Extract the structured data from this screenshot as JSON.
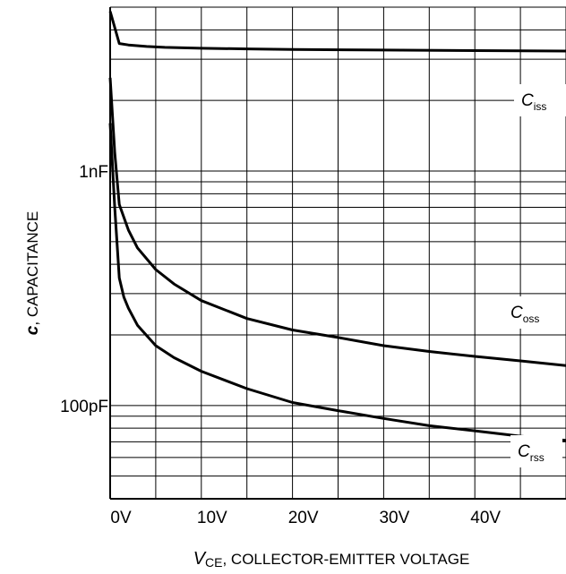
{
  "chart_data": {
    "type": "line",
    "title": "",
    "xlabel": {
      "main": "V",
      "sub": "CE",
      "rest": ", COLLECTOR-EMITTER VOLTAGE"
    },
    "ylabel": {
      "main": "c",
      "rest": ", CAPACITANCE"
    },
    "x_ticks": [
      {
        "value": 0,
        "label": "0V"
      },
      {
        "value": 10,
        "label": "10V"
      },
      {
        "value": 20,
        "label": "20V"
      },
      {
        "value": 30,
        "label": "30V"
      },
      {
        "value": 40,
        "label": "40V"
      }
    ],
    "y_ticks": [
      {
        "value": 1000,
        "label": "1nF"
      },
      {
        "value": 100,
        "label": "100pF"
      }
    ],
    "xlim": [
      0,
      50
    ],
    "ylim_pF": [
      40,
      5000
    ],
    "y_scale": "log",
    "grid": true,
    "series": [
      {
        "name": "C",
        "sub": "iss",
        "x": [
          0,
          1,
          2,
          4,
          6,
          10,
          15,
          20,
          30,
          40,
          50
        ],
        "y": [
          4800,
          3500,
          3450,
          3400,
          3370,
          3340,
          3320,
          3300,
          3280,
          3265,
          3250
        ]
      },
      {
        "name": "C",
        "sub": "oss",
        "x": [
          0,
          0.5,
          1,
          2,
          3,
          5,
          7,
          10,
          15,
          20,
          25,
          30,
          35,
          40,
          45,
          50
        ],
        "y": [
          2500,
          1200,
          720,
          560,
          470,
          380,
          330,
          280,
          235,
          210,
          195,
          180,
          170,
          162,
          155,
          148
        ]
      },
      {
        "name": "C",
        "sub": "rss",
        "x": [
          0,
          0.5,
          1,
          1.5,
          2,
          3,
          5,
          7,
          10,
          15,
          20,
          25,
          30,
          35,
          40,
          45,
          50
        ],
        "y": [
          1600,
          700,
          350,
          290,
          260,
          220,
          180,
          160,
          140,
          118,
          103,
          95,
          88,
          82,
          78,
          74,
          71
        ]
      }
    ],
    "label_positions": {
      "Ciss": "right, upper",
      "Coss": "right, middle",
      "Crss": "right, lower"
    }
  }
}
